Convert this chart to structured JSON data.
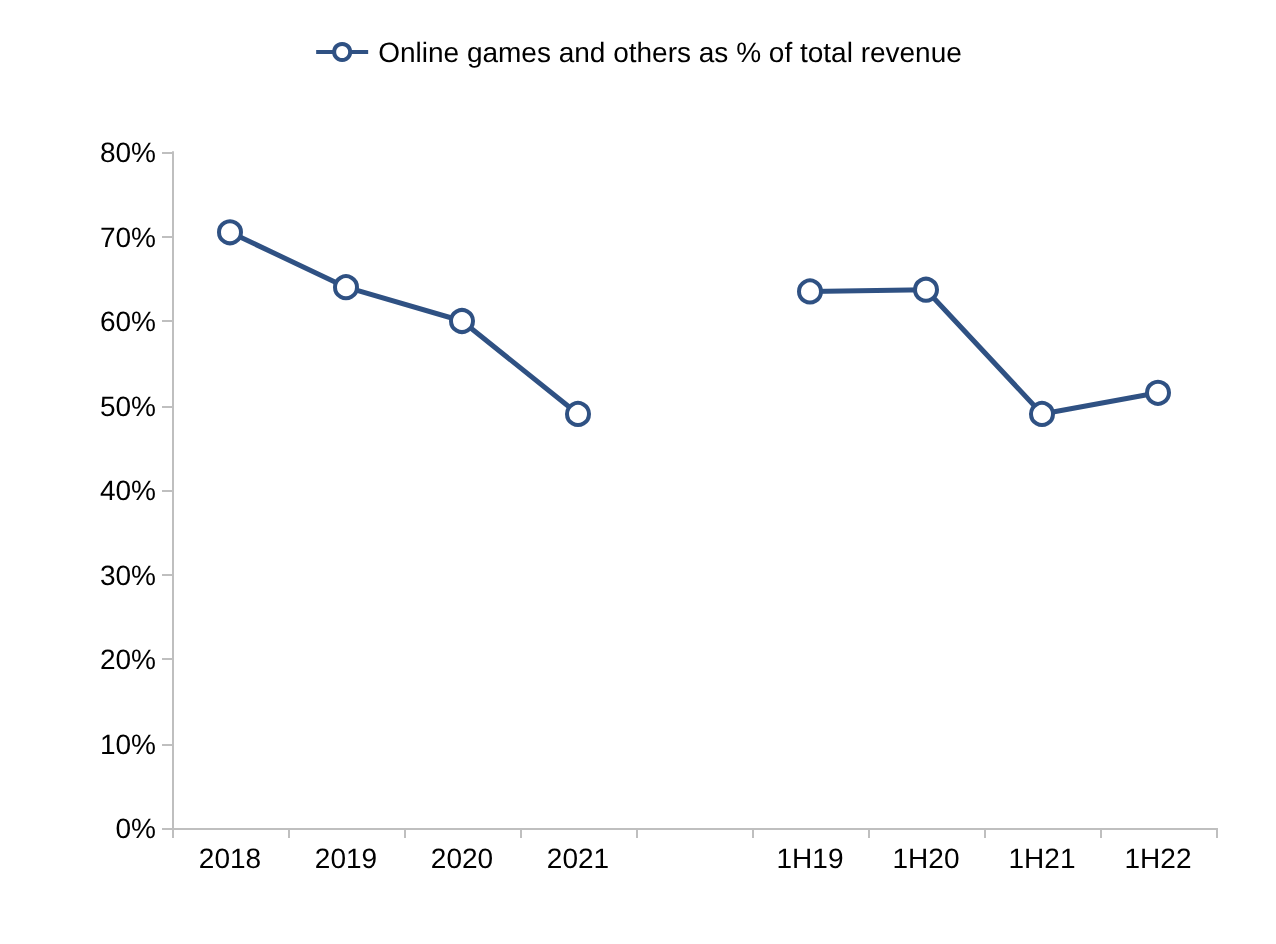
{
  "chart_data": {
    "type": "line",
    "categories": [
      "2018",
      "2019",
      "2020",
      "2021",
      null,
      "1H19",
      "1H20",
      "1H21",
      "1H22"
    ],
    "series": [
      {
        "name": "Online games and others as % of total revenue",
        "color": "#2f5183",
        "values": [
          70.5,
          64,
          60,
          49,
          null,
          63.5,
          63.7,
          49,
          51.5
        ]
      }
    ],
    "ylim": [
      0,
      80
    ],
    "yticks": [
      {
        "value": 0,
        "label": "0%"
      },
      {
        "value": 10,
        "label": "10%"
      },
      {
        "value": 20,
        "label": "20%"
      },
      {
        "value": 30,
        "label": "30%"
      },
      {
        "value": 40,
        "label": "40%"
      },
      {
        "value": 50,
        "label": "50%"
      },
      {
        "value": 60,
        "label": "60%"
      },
      {
        "value": 70,
        "label": "70%"
      },
      {
        "value": 80,
        "label": "80%"
      }
    ],
    "grid": false,
    "legend": "top",
    "marker": "circle",
    "line_style": "solid"
  }
}
